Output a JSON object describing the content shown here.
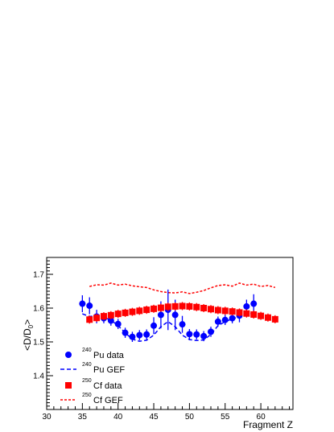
{
  "chart_data": {
    "type": "scatter",
    "xlabel": "Fragment Z",
    "ylabel": "<D/D0>",
    "ylabel_main": "<D/D",
    "ylabel_sub": "0",
    "ylabel_end": ">",
    "xlim": [
      30,
      64.5
    ],
    "ylim": [
      1.3,
      1.75
    ],
    "x_ticks": [
      30,
      35,
      40,
      45,
      50,
      55,
      60
    ],
    "y_ticks": [
      1.4,
      1.5,
      1.6,
      1.7
    ],
    "x_tick_labels": [
      "30",
      "35",
      "40",
      "45",
      "50",
      "55",
      "60"
    ],
    "y_tick_labels": [
      "1.4",
      "1.5",
      "1.6",
      "1.7"
    ],
    "grid": false,
    "legend_position": "bottom-left",
    "colors": {
      "pu": "#0000ff",
      "cf": "#ff0000"
    },
    "series": [
      {
        "key": "pu_data",
        "kind": "points",
        "marker": "circle",
        "color": "#0000ff",
        "x": [
          35,
          36,
          37,
          38,
          39,
          40,
          41,
          42,
          43,
          44,
          45,
          46,
          47,
          48,
          49,
          50,
          51,
          52,
          53,
          54,
          55,
          56,
          57,
          58,
          59
        ],
        "y": [
          1.613,
          1.607,
          1.575,
          1.57,
          1.563,
          1.553,
          1.527,
          1.515,
          1.52,
          1.522,
          1.548,
          1.58,
          1.595,
          1.58,
          1.552,
          1.523,
          1.522,
          1.517,
          1.53,
          1.56,
          1.565,
          1.57,
          1.578,
          1.605,
          1.613
        ],
        "err": [
          0.025,
          0.025,
          0.02,
          0.015,
          0.015,
          0.015,
          0.015,
          0.015,
          0.015,
          0.015,
          0.025,
          0.04,
          0.06,
          0.045,
          0.025,
          0.015,
          0.015,
          0.015,
          0.015,
          0.015,
          0.015,
          0.015,
          0.02,
          0.02,
          0.028
        ]
      },
      {
        "key": "pu_gef",
        "kind": "line",
        "dash": "5,3",
        "color": "#0000ff",
        "x": [
          35,
          36,
          37,
          38,
          39,
          40,
          41,
          42,
          43,
          44,
          45,
          46,
          47,
          48,
          49,
          50,
          51,
          52,
          53,
          54,
          55,
          56,
          57,
          58,
          59
        ],
        "y": [
          1.583,
          1.575,
          1.578,
          1.572,
          1.565,
          1.548,
          1.527,
          1.508,
          1.502,
          1.505,
          1.52,
          1.545,
          1.56,
          1.545,
          1.52,
          1.507,
          1.504,
          1.506,
          1.522,
          1.548,
          1.56,
          1.568,
          1.575,
          1.582,
          1.585
        ]
      },
      {
        "key": "cf_data",
        "kind": "points",
        "marker": "square",
        "color": "#ff0000",
        "x": [
          36,
          37,
          38,
          39,
          40,
          41,
          42,
          43,
          44,
          45,
          46,
          47,
          48,
          49,
          50,
          51,
          52,
          53,
          54,
          55,
          56,
          57,
          58,
          59,
          60,
          61,
          62
        ],
        "y": [
          1.566,
          1.571,
          1.576,
          1.579,
          1.583,
          1.586,
          1.589,
          1.592,
          1.595,
          1.598,
          1.601,
          1.604,
          1.605,
          1.606,
          1.605,
          1.603,
          1.6,
          1.597,
          1.594,
          1.592,
          1.59,
          1.587,
          1.584,
          1.581,
          1.577,
          1.572,
          1.567
        ],
        "err": [
          0.012,
          0.012,
          0.012,
          0.012,
          0.012,
          0.012,
          0.012,
          0.012,
          0.012,
          0.012,
          0.012,
          0.012,
          0.012,
          0.012,
          0.012,
          0.012,
          0.012,
          0.012,
          0.012,
          0.012,
          0.012,
          0.012,
          0.012,
          0.012,
          0.012,
          0.012,
          0.012
        ]
      },
      {
        "key": "cf_gef",
        "kind": "line",
        "dash": "3,2",
        "color": "#ff0000",
        "x": [
          36,
          37,
          38,
          39,
          40,
          41,
          42,
          43,
          44,
          45,
          46,
          47,
          48,
          49,
          50,
          51,
          52,
          53,
          54,
          55,
          56,
          57,
          58,
          59,
          60,
          61,
          62
        ],
        "y": [
          1.664,
          1.669,
          1.668,
          1.674,
          1.668,
          1.671,
          1.666,
          1.663,
          1.661,
          1.654,
          1.649,
          1.646,
          1.645,
          1.648,
          1.643,
          1.647,
          1.652,
          1.66,
          1.667,
          1.669,
          1.665,
          1.674,
          1.668,
          1.671,
          1.664,
          1.667,
          1.661
        ]
      }
    ],
    "legend": [
      {
        "series": "pu_data",
        "sup": "240",
        "label": "Pu data"
      },
      {
        "series": "pu_gef",
        "sup": "240",
        "label": "Pu GEF"
      },
      {
        "series": "cf_data",
        "sup": "250",
        "label": "Cf data"
      },
      {
        "series": "cf_gef",
        "sup": "250",
        "label": "Cf GEF"
      }
    ]
  }
}
